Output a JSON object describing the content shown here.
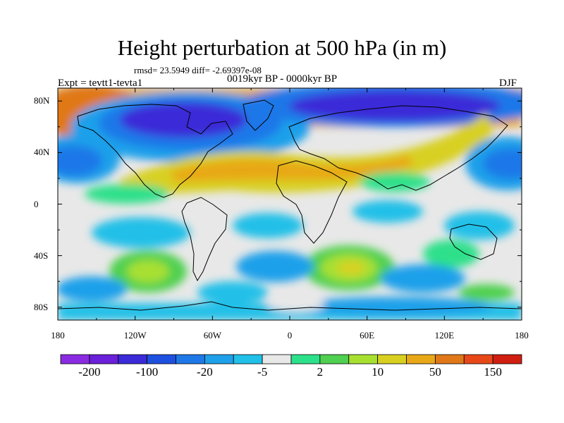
{
  "title": "Height perturbation at 500 hPa (in m)",
  "stats": "rmsd= 23.5949 diff= -2.69397e-08",
  "experiment": "Expt = tevtt1-tevta1",
  "period": "0019kyr BP - 0000kyr BP",
  "season": "DJF",
  "chart_data": {
    "type": "heatmap",
    "projection": "cylindrical-equidistant",
    "variable": "geopotential height perturbation at 500 hPa",
    "units": "m",
    "x_range": [
      -180,
      180
    ],
    "y_range": [
      -90,
      90
    ],
    "lat_ticks": [
      "80N",
      "40N",
      "0",
      "40S",
      "80S"
    ],
    "lat_values": [
      80,
      40,
      0,
      -40,
      -80
    ],
    "lon_ticks": [
      "180",
      "120W",
      "60W",
      "0",
      "60E",
      "120E",
      "180"
    ],
    "lon_values": [
      -180,
      -120,
      -60,
      0,
      60,
      120,
      180
    ],
    "colorbar": {
      "colors": [
        "#8a2be2",
        "#6a1fd8",
        "#3a2ad8",
        "#1e50e0",
        "#1f78e8",
        "#1fa0ea",
        "#20c0e8",
        "#e8e8e8",
        "#2de08a",
        "#50d050",
        "#a8e030",
        "#d8d020",
        "#e8a818",
        "#e07818",
        "#e84818",
        "#d01e10"
      ],
      "labels": [
        "-200",
        "-100",
        "-20",
        "-5",
        "2",
        "10",
        "50",
        "150"
      ]
    },
    "features": [
      {
        "name": "North Pacific to Arctic positive anomaly",
        "lon": -150,
        "lat": 65,
        "value": 80
      },
      {
        "name": "North American negative anomaly",
        "lon": -75,
        "lat": 65,
        "value": -180
      },
      {
        "name": "North Atlantic positive band",
        "lon": -30,
        "lat": 40,
        "value": 60
      },
      {
        "name": "Eurasian positive band",
        "lon": 60,
        "lat": 45,
        "value": 50
      },
      {
        "name": "Siberian negative anomaly",
        "lon": 90,
        "lat": 75,
        "value": -150
      },
      {
        "name": "North Pacific negative anomaly",
        "lon": 165,
        "lat": 35,
        "value": -60
      },
      {
        "name": "South Indian Ocean positive anomaly",
        "lon": 45,
        "lat": -45,
        "value": 30
      },
      {
        "name": "South Pacific positive anomaly",
        "lon": -140,
        "lat": -40,
        "value": 15
      }
    ]
  }
}
